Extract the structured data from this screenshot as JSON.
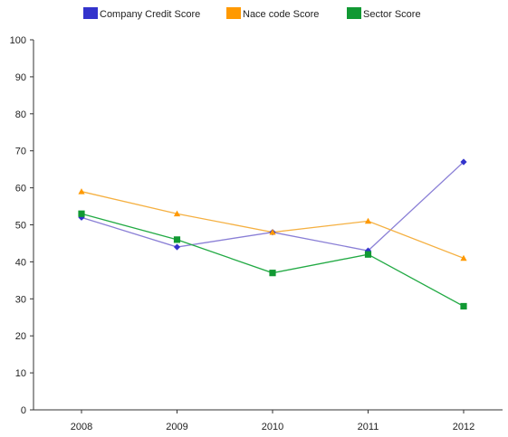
{
  "chart_data": {
    "type": "line",
    "title": "",
    "xlabel": "",
    "ylabel": "",
    "categories": [
      "2008",
      "2009",
      "2010",
      "2011",
      "2012"
    ],
    "ylim": [
      0,
      100
    ],
    "yticks": [
      0,
      10,
      20,
      30,
      40,
      50,
      60,
      70,
      80,
      90,
      100
    ],
    "grid": false,
    "legend_position": "top-center",
    "series": [
      {
        "name": "Company Credit Score",
        "color": "#3333cc",
        "line_color": "#8a7fd6",
        "marker": "diamond",
        "values": [
          52,
          44,
          48,
          43,
          67
        ]
      },
      {
        "name": "Nace code Score",
        "color": "#ff9900",
        "line_color": "#f5b041",
        "marker": "triangle",
        "values": [
          59,
          53,
          48,
          51,
          41
        ]
      },
      {
        "name": "Sector Score",
        "color": "#119933",
        "line_color": "#22aa44",
        "marker": "square",
        "values": [
          53,
          46,
          37,
          42,
          28
        ]
      }
    ]
  }
}
